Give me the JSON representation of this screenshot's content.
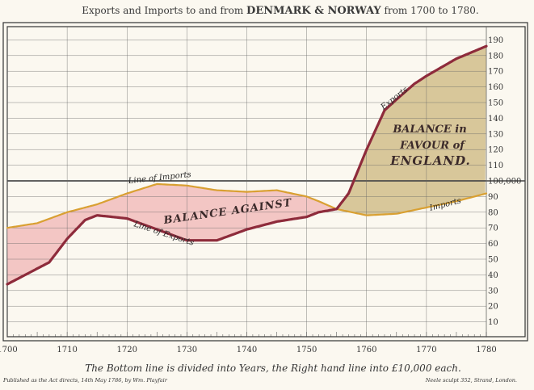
{
  "chart_data": {
    "type": "area",
    "title_prefix": "Exports and Imports to and from",
    "title_main": "DENMARK & NORWAY",
    "title_suffix": "from 1700 to 1780.",
    "x_ticks": [
      1700,
      1710,
      1720,
      1730,
      1740,
      1750,
      1760,
      1770,
      1780
    ],
    "xlim": [
      1700,
      1780
    ],
    "y_ticks": [
      10,
      20,
      30,
      40,
      50,
      60,
      70,
      80,
      90,
      100,
      110,
      120,
      130,
      140,
      150,
      160,
      170,
      180,
      190
    ],
    "y_tick_100_label": "100,000",
    "ylim": [
      0,
      200
    ],
    "series": [
      {
        "name": "Line of Imports",
        "color": "#d9a032",
        "x": [
          1700,
          1705,
          1710,
          1715,
          1720,
          1725,
          1730,
          1735,
          1740,
          1745,
          1750,
          1752,
          1755,
          1760,
          1765,
          1770,
          1775,
          1780
        ],
        "y": [
          70,
          73,
          80,
          85,
          92,
          98,
          97,
          94,
          93,
          94,
          90,
          87,
          82,
          78,
          79,
          83,
          87,
          92
        ]
      },
      {
        "name": "Line of Exports",
        "color": "#8e2b3b",
        "x": [
          1700,
          1703,
          1707,
          1710,
          1713,
          1715,
          1720,
          1725,
          1730,
          1735,
          1740,
          1745,
          1750,
          1752,
          1755,
          1757,
          1760,
          1763,
          1765,
          1768,
          1770,
          1775,
          1780
        ],
        "y": [
          34,
          40,
          48,
          63,
          75,
          78,
          76,
          69,
          62,
          62,
          69,
          74,
          77,
          80,
          82,
          92,
          120,
          145,
          152,
          162,
          167,
          178,
          186
        ]
      }
    ],
    "annotations": {
      "balance_against": "BALANCE AGAINST",
      "balance_favour_1": "BALANCE in",
      "balance_favour_2": "FAVOUR of",
      "balance_favour_3": "ENGLAND.",
      "imports_left": "Line of Imports",
      "exports_left": "Line of Exports",
      "exports_right": "Exports",
      "imports_right": "Imports"
    },
    "footer_main": "The Bottom line is divided into Years, the Right hand line into £10,000 each.",
    "footer_left": "Published as the Act directs, 14th May 1786, by Wm. Playfair",
    "footer_right": "Neele sculpt 352, Strand, London.",
    "colors": {
      "grid": "#666666",
      "frame": "#333333",
      "balance_against_fill": "#f3c6c4",
      "balance_favour_fill": "#d8c79a",
      "paper": "#fbf8f0"
    },
    "grid": true
  }
}
